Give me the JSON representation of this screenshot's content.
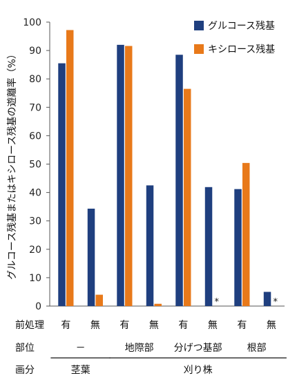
{
  "chart_data": {
    "type": "bar",
    "ylabel": "グルコース残基またはキシロース残基の遊離率（%）",
    "ylim": [
      0,
      100
    ],
    "yticks": [
      0,
      10,
      20,
      30,
      40,
      50,
      60,
      70,
      80,
      90,
      100
    ],
    "categories": [
      "有",
      "無",
      "有",
      "無",
      "有",
      "無",
      "有",
      "無"
    ],
    "series": [
      {
        "name": "グルコース残基",
        "color": "#1f3f7f",
        "values": [
          85.5,
          34.3,
          92.0,
          42.5,
          88.5,
          41.9,
          41.2,
          5.0
        ]
      },
      {
        "name": "キシロース残基",
        "color": "#e8791a",
        "values": [
          97.2,
          4.0,
          91.6,
          0.8,
          76.5,
          0,
          50.4,
          0
        ]
      }
    ],
    "asterisk": "*",
    "row_labels": {
      "treatment": "前処理",
      "part": "部位",
      "fraction": "画分"
    },
    "part_groups": [
      "－",
      "地際部",
      "分げつ基部",
      "根部"
    ],
    "fraction_groups": [
      "茎葉",
      "刈り株"
    ],
    "legend_position": "top-right"
  }
}
